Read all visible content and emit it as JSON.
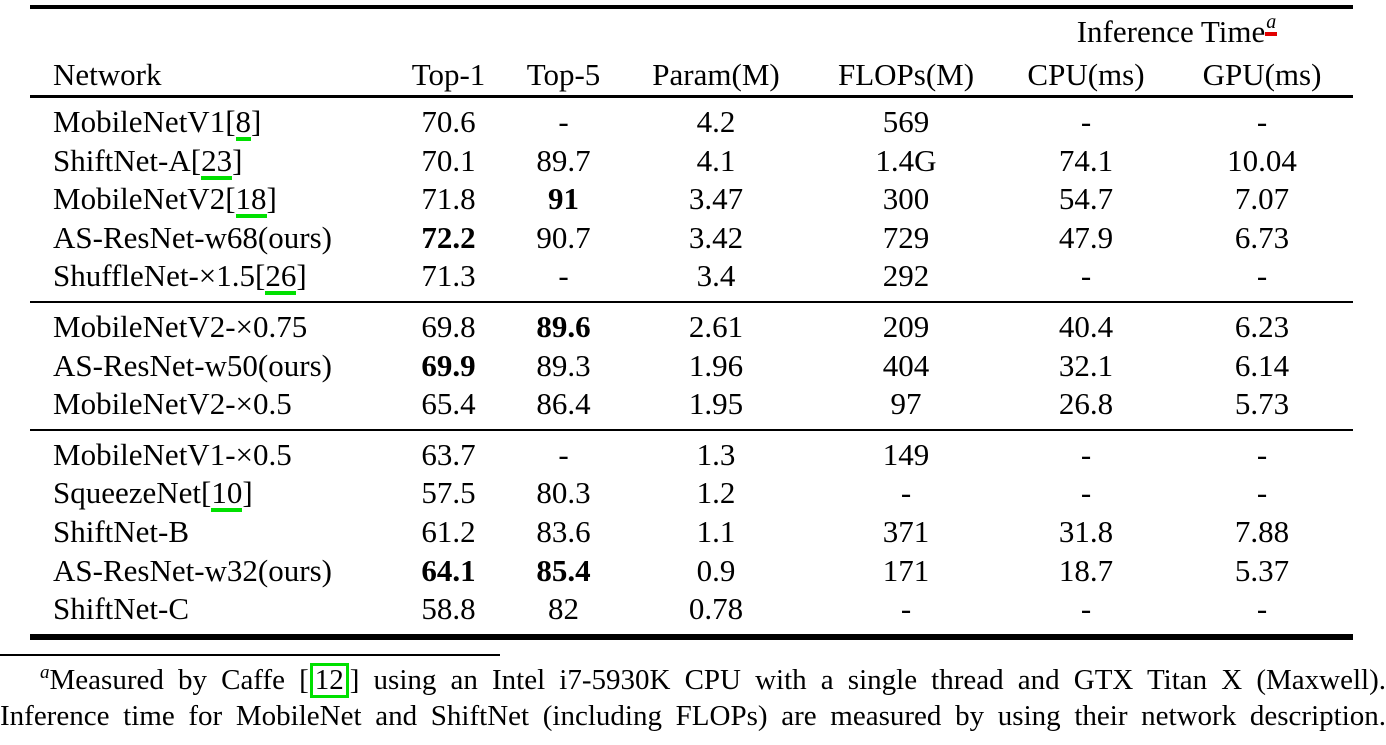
{
  "colors": {
    "citation_green": "#00e000",
    "footnote_link_red": "#e10000",
    "text": "#000000",
    "background": "#ffffff"
  },
  "table": {
    "span_header": {
      "label": "Inference Time",
      "superscript": "a"
    },
    "columns": [
      "Network",
      "Top-1",
      "Top-5",
      "Param(M)",
      "FLOPs(M)",
      "CPU(ms)",
      "GPU(ms)"
    ],
    "groups": [
      {
        "rows": [
          {
            "name": "MobileNetV1",
            "cite": "8",
            "top1": "70.6",
            "top5": "-",
            "param": "4.2",
            "flops": "569",
            "cpu": "-",
            "gpu": "-",
            "bold": []
          },
          {
            "name": "ShiftNet-A",
            "cite": "23",
            "top1": "70.1",
            "top5": "89.7",
            "param": "4.1",
            "flops": "1.4G",
            "cpu": "74.1",
            "gpu": "10.04",
            "bold": []
          },
          {
            "name": "MobileNetV2",
            "cite": "18",
            "top1": "71.8",
            "top5": "91",
            "param": "3.47",
            "flops": "300",
            "cpu": "54.7",
            "gpu": "7.07",
            "bold": [
              "top5"
            ]
          },
          {
            "name": "AS-ResNet-w68(ours)",
            "cite": "",
            "top1": "72.2",
            "top5": "90.7",
            "param": "3.42",
            "flops": "729",
            "cpu": "47.9",
            "gpu": "6.73",
            "bold": [
              "top1"
            ]
          },
          {
            "name": "ShuffleNet-×1.5",
            "cite": "26",
            "top1": "71.3",
            "top5": "-",
            "param": "3.4",
            "flops": "292",
            "cpu": "-",
            "gpu": "-",
            "bold": []
          }
        ]
      },
      {
        "rows": [
          {
            "name": "MobileNetV2-×0.75",
            "cite": "",
            "top1": "69.8",
            "top5": "89.6",
            "param": "2.61",
            "flops": "209",
            "cpu": "40.4",
            "gpu": "6.23",
            "bold": [
              "top5"
            ]
          },
          {
            "name": "AS-ResNet-w50(ours)",
            "cite": "",
            "top1": "69.9",
            "top5": "89.3",
            "param": "1.96",
            "flops": "404",
            "cpu": "32.1",
            "gpu": "6.14",
            "bold": [
              "top1"
            ]
          },
          {
            "name": "MobileNetV2-×0.5",
            "cite": "",
            "top1": "65.4",
            "top5": "86.4",
            "param": "1.95",
            "flops": "97",
            "cpu": "26.8",
            "gpu": "5.73",
            "bold": []
          }
        ]
      },
      {
        "rows": [
          {
            "name": "MobileNetV1-×0.5",
            "cite": "",
            "top1": "63.7",
            "top5": "-",
            "param": "1.3",
            "flops": "149",
            "cpu": "-",
            "gpu": "-",
            "bold": []
          },
          {
            "name": "SqueezeNet",
            "cite": "10",
            "top1": "57.5",
            "top5": "80.3",
            "param": "1.2",
            "flops": "-",
            "cpu": "-",
            "gpu": "-",
            "bold": []
          },
          {
            "name": "ShiftNet-B",
            "cite": "",
            "top1": "61.2",
            "top5": "83.6",
            "param": "1.1",
            "flops": "371",
            "cpu": "31.8",
            "gpu": "7.88",
            "bold": []
          },
          {
            "name": "AS-ResNet-w32(ours)",
            "cite": "",
            "top1": "64.1",
            "top5": "85.4",
            "param": "0.9",
            "flops": "171",
            "cpu": "18.7",
            "gpu": "5.37",
            "bold": [
              "top1",
              "top5"
            ]
          },
          {
            "name": "ShiftNet-C",
            "cite": "",
            "top1": "58.8",
            "top5": "82",
            "param": "0.78",
            "flops": "-",
            "cpu": "-",
            "gpu": "-",
            "bold": []
          }
        ]
      }
    ]
  },
  "footnote": {
    "marker": "a",
    "line1_pre": "Measured by Caffe [",
    "line1_cite": "12",
    "line1_post": "] using an Intel i7-5930K CPU with a single thread and GTX Titan X (Maxwell).",
    "line2": "Inference time for MobileNet and ShiftNet (including FLOPs) are measured by using their network description."
  }
}
